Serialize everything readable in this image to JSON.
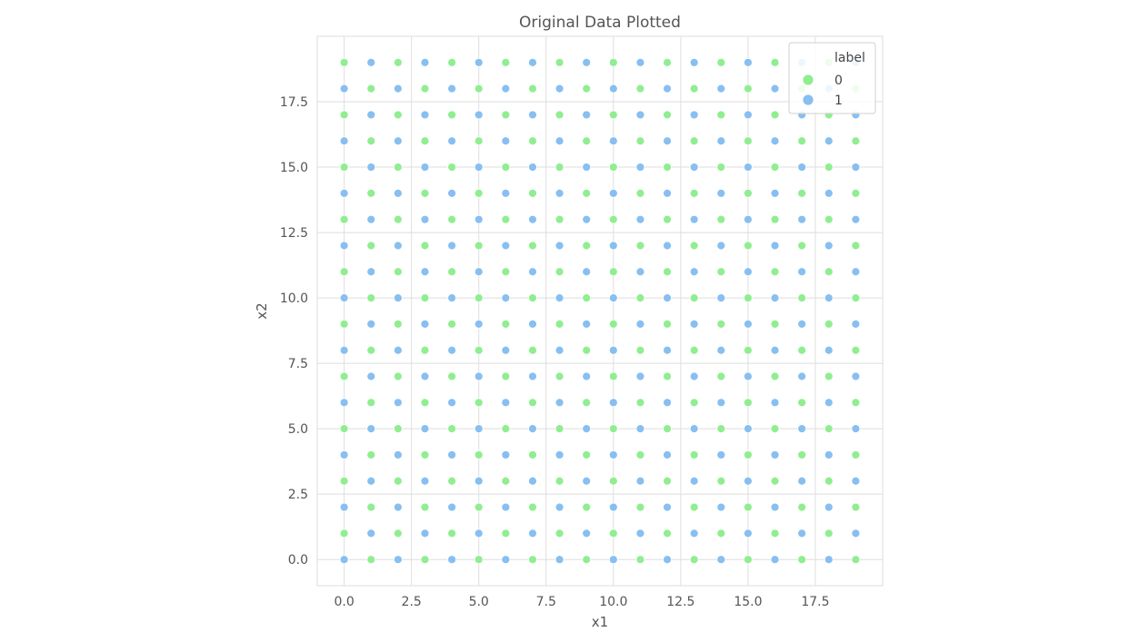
{
  "chart_data": {
    "type": "scatter",
    "title": "Original Data Plotted",
    "xlabel": "x1",
    "ylabel": "x2",
    "xlim": [
      -1,
      20
    ],
    "ylim": [
      -1,
      20
    ],
    "xticks": [
      0.0,
      2.5,
      5.0,
      7.5,
      10.0,
      12.5,
      15.0,
      17.5
    ],
    "xtick_labels": [
      "0.0",
      "2.5",
      "5.0",
      "7.5",
      "10.0",
      "12.5",
      "15.0",
      "17.5"
    ],
    "yticks": [
      0.0,
      2.5,
      5.0,
      7.5,
      10.0,
      12.5,
      15.0,
      17.5
    ],
    "ytick_labels": [
      "0.0",
      "2.5",
      "5.0",
      "7.5",
      "10.0",
      "12.5",
      "15.0",
      "17.5"
    ],
    "grid": true,
    "legend": {
      "title": "label",
      "placement": "top-right"
    },
    "grid_x": [
      0,
      19
    ],
    "grid_y": [
      0,
      19
    ],
    "label_rule": "checkerboard",
    "series": [
      {
        "name": "0",
        "color": "#90EE90"
      },
      {
        "name": "1",
        "color": "#87BFF0"
      }
    ]
  }
}
